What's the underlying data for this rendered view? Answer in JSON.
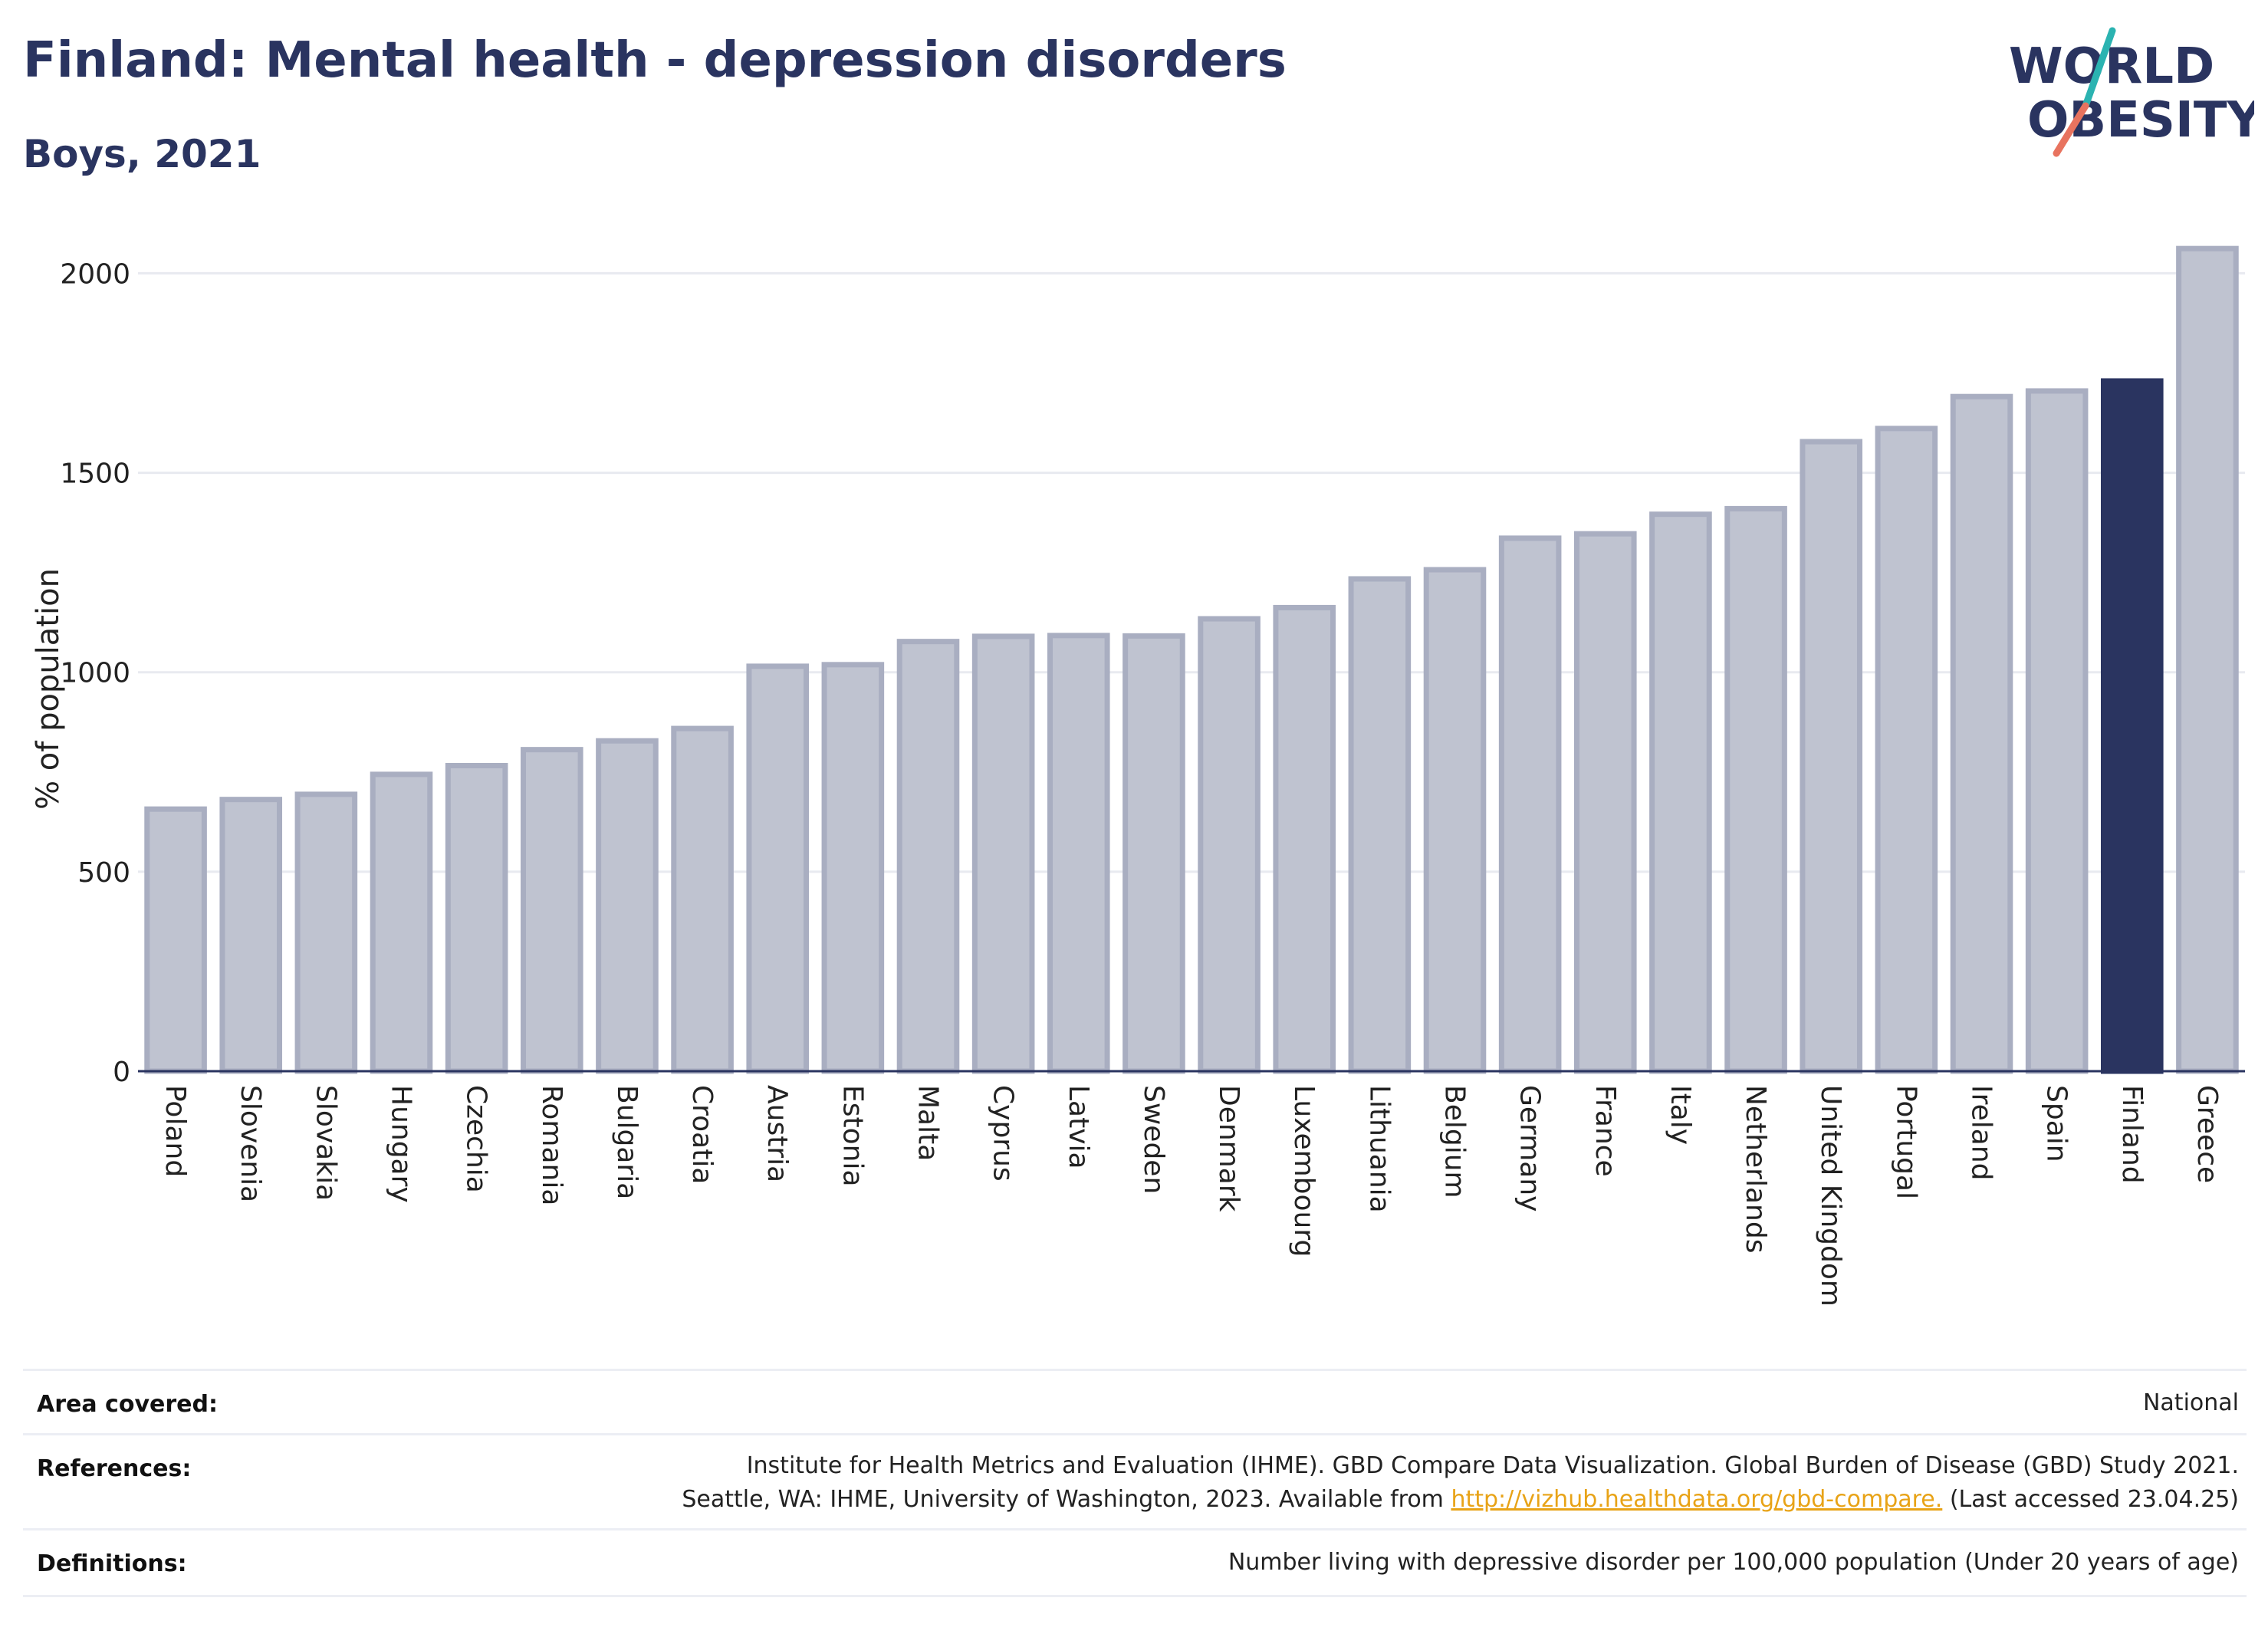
{
  "header": {
    "title": "Finland: Mental health - depression disorders",
    "subtitle": "Boys, 2021"
  },
  "logo": {
    "line1": "WORLD",
    "line2": "OBESITY",
    "colors": {
      "text": "#2a3460",
      "slash_top": "#2bb3b1",
      "slash_bottom": "#e8735f"
    }
  },
  "chart_data": {
    "type": "bar",
    "ylabel": "% of population",
    "xlabel": "",
    "ylim": [
      0,
      2070
    ],
    "yticks": [
      0,
      500,
      1000,
      1500,
      2000
    ],
    "grid": true,
    "highlight": "Finland",
    "colors": {
      "default_fill": "#bfc3d0",
      "default_stroke": "#a9aec1",
      "highlight_fill": "#2a3460"
    },
    "categories": [
      "Poland",
      "Slovenia",
      "Slovakia",
      "Hungary",
      "Czechia",
      "Romania",
      "Bulgaria",
      "Croatia",
      "Austria",
      "Estonia",
      "Malta",
      "Cyprus",
      "Latvia",
      "Sweden",
      "Denmark",
      "Luxembourg",
      "Lithuania",
      "Belgium",
      "Germany",
      "France",
      "Italy",
      "Netherlands",
      "United Kingdom",
      "Portugal",
      "Ireland",
      "Spain",
      "Finland",
      "Greece"
    ],
    "values": [
      657,
      681,
      694,
      744,
      766,
      806,
      828,
      859,
      1015,
      1019,
      1077,
      1090,
      1092,
      1091,
      1134,
      1162,
      1234,
      1257,
      1336,
      1347,
      1396,
      1410,
      1578,
      1611,
      1691,
      1705,
      1730,
      2062
    ]
  },
  "info": {
    "area_label": "Area covered:",
    "area_value": "National",
    "references_label": "References:",
    "references_line1": "Institute for Health Metrics and Evaluation (IHME). GBD Compare Data Visualization. Global Burden of Disease (GBD) Study 2021.",
    "references_line2_prefix": "Seattle, WA: IHME, University of Washington, 2023. Available from ",
    "references_link": "http://vizhub.healthdata.org/gbd-compare.",
    "references_line2_suffix": " (Last accessed 23.04.25)",
    "definitions_label": "Definitions:",
    "definitions_value": "Number living with depressive disorder per 100,000 population (Under 20 years of age)"
  }
}
